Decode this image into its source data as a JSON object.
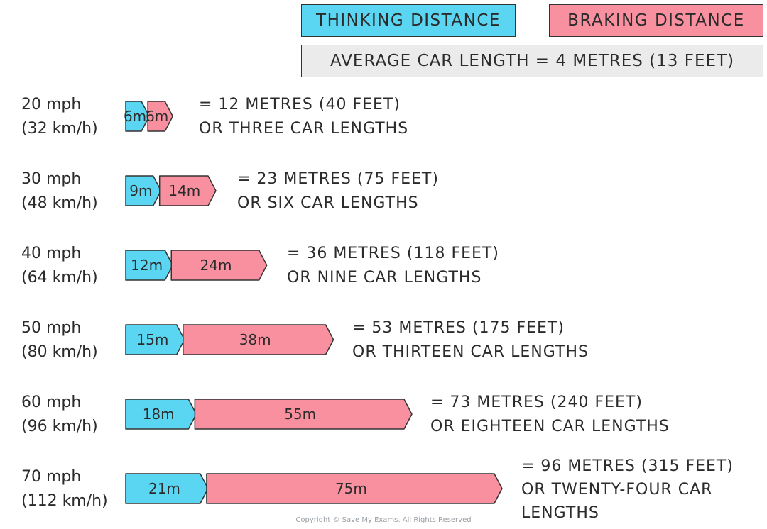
{
  "legend": {
    "thinking_label": "THINKING DISTANCE",
    "braking_label": "BRAKING DISTANCE",
    "car_length_note": "AVERAGE CAR LENGTH = 4 METRES (13 FEET)"
  },
  "colors": {
    "thinking": "#5ad6f3",
    "braking": "#f8909f",
    "note_bg": "#ebebeb",
    "stroke": "#333333"
  },
  "rows": [
    {
      "mph": "20 mph",
      "kmh": "(32 km/h)",
      "summary_line1": "= 12 METRES (40 FEET)",
      "summary_line2": "OR THREE CAR LENGTHS",
      "summary_line3": ""
    },
    {
      "mph": "30 mph",
      "kmh": "(48 km/h)",
      "summary_line1": "= 23 METRES (75 FEET)",
      "summary_line2": "OR SIX CAR LENGTHS",
      "summary_line3": ""
    },
    {
      "mph": "40 mph",
      "kmh": "(64 km/h)",
      "summary_line1": "= 36 METRES (118 FEET)",
      "summary_line2": "OR NINE CAR LENGTHS",
      "summary_line3": ""
    },
    {
      "mph": "50 mph",
      "kmh": "(80 km/h)",
      "summary_line1": "= 53 METRES (175 FEET)",
      "summary_line2": "OR THIRTEEN CAR LENGTHS",
      "summary_line3": ""
    },
    {
      "mph": "60 mph",
      "kmh": "(96 km/h)",
      "summary_line1": "= 73 METRES (240 FEET)",
      "summary_line2": "OR EIGHTEEN CAR LENGTHS",
      "summary_line3": ""
    },
    {
      "mph": "70 mph",
      "kmh": "(112 km/h)",
      "summary_line1": "= 96 METRES (315 FEET)",
      "summary_line2": "OR TWENTY-FOUR CAR",
      "summary_line3": "LENGTHS"
    }
  ],
  "chart_data": {
    "type": "bar",
    "stacked": true,
    "orientation": "horizontal",
    "categories": [
      "20 mph",
      "30 mph",
      "40 mph",
      "50 mph",
      "60 mph",
      "70 mph"
    ],
    "series": [
      {
        "name": "THINKING DISTANCE",
        "values": [
          6,
          9,
          12,
          15,
          18,
          21
        ],
        "labels": [
          "6m",
          "9m",
          "12m",
          "15m",
          "18m",
          "21m"
        ]
      },
      {
        "name": "BRAKING DISTANCE",
        "values": [
          6,
          14,
          24,
          38,
          55,
          75
        ],
        "labels": [
          "6m",
          "14m",
          "24m",
          "38m",
          "55m",
          "75m"
        ]
      }
    ]
  },
  "copyright": "Copyright © Save My Exams. All Rights Reserved"
}
